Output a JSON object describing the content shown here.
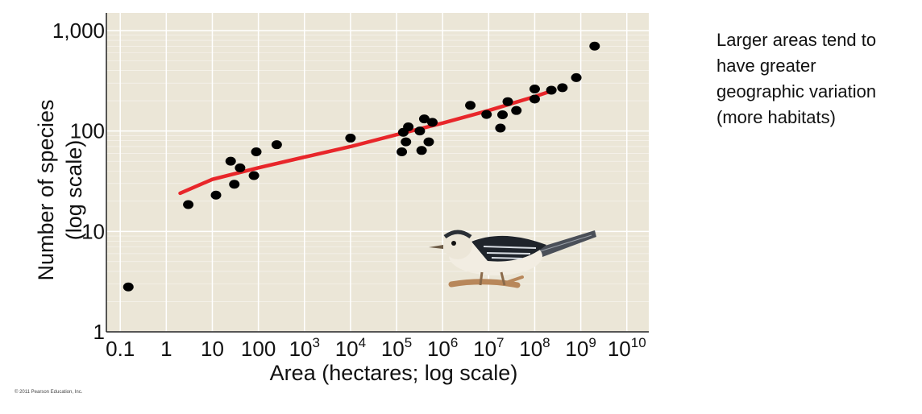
{
  "chart_data": {
    "type": "scatter",
    "title": "",
    "xlabel": "Area (hectares; log scale)",
    "ylabel_line1": "Number of species",
    "ylabel_line2": "(log scale)",
    "x_scale": "log",
    "y_scale": "log",
    "xlim": [
      0.05,
      30000000000
    ],
    "ylim": [
      1,
      1500
    ],
    "x_ticks": [
      {
        "base": "0.1",
        "exp": ""
      },
      {
        "base": "1",
        "exp": ""
      },
      {
        "base": "10",
        "exp": ""
      },
      {
        "base": "100",
        "exp": ""
      },
      {
        "base": "10",
        "exp": "3"
      },
      {
        "base": "10",
        "exp": "4"
      },
      {
        "base": "10",
        "exp": "5"
      },
      {
        "base": "10",
        "exp": "6"
      },
      {
        "base": "10",
        "exp": "7"
      },
      {
        "base": "10",
        "exp": "8"
      },
      {
        "base": "10",
        "exp": "9"
      },
      {
        "base": "10",
        "exp": "10"
      }
    ],
    "x_tick_values": [
      0.1,
      1,
      10,
      100,
      1000,
      10000,
      100000,
      1000000,
      10000000,
      100000000,
      1000000000,
      10000000000
    ],
    "y_ticks": [
      "1",
      "10",
      "100",
      "1,000"
    ],
    "y_tick_values": [
      1,
      10,
      100,
      1000
    ],
    "points": [
      [
        0.15,
        2.8
      ],
      [
        3,
        18.5
      ],
      [
        12,
        23
      ],
      [
        25,
        50
      ],
      [
        30,
        29.5
      ],
      [
        40,
        43
      ],
      [
        80,
        36
      ],
      [
        90,
        62
      ],
      [
        250,
        73
      ],
      [
        10000,
        85
      ],
      [
        130000,
        62
      ],
      [
        140000,
        97
      ],
      [
        160000,
        78
      ],
      [
        180000,
        110
      ],
      [
        320000,
        100
      ],
      [
        350000,
        64
      ],
      [
        400000,
        132
      ],
      [
        500000,
        78
      ],
      [
        600000,
        122
      ],
      [
        4000000,
        180
      ],
      [
        9000000,
        146
      ],
      [
        18000000,
        107
      ],
      [
        20000000,
        145
      ],
      [
        26000000,
        196
      ],
      [
        40000000,
        160
      ],
      [
        100000000,
        208
      ],
      [
        100000000,
        262
      ],
      [
        230000000,
        255
      ],
      [
        400000000,
        270
      ],
      [
        800000000,
        340
      ],
      [
        2000000000,
        700
      ]
    ],
    "fit_line": [
      [
        2,
        24
      ],
      [
        10,
        33
      ],
      [
        100,
        43
      ],
      [
        1000,
        55
      ],
      [
        10000,
        70
      ],
      [
        100000,
        92
      ],
      [
        1000000,
        120
      ],
      [
        10000000,
        160
      ],
      [
        100000000,
        220
      ],
      [
        200000000,
        245
      ]
    ],
    "colors": {
      "plot_background": "#ebe6d7",
      "grid": "#ffffff",
      "points": "#000000",
      "fit_line": "#e8262a"
    },
    "grid": true
  },
  "copyright": "© 2011 Pearson Education, Inc.",
  "caption": "Larger areas tend to\nhave greater\ngeographic variation\n(more habitats)"
}
